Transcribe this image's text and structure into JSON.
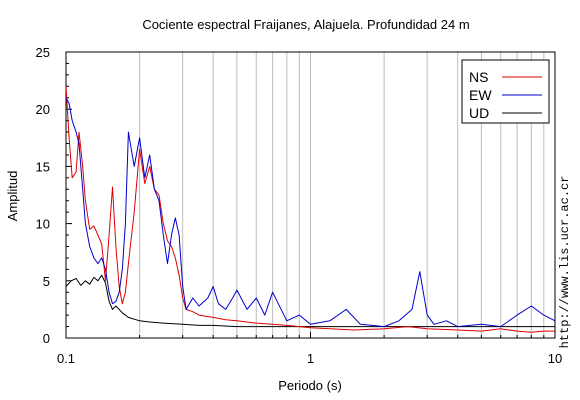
{
  "chart_data": {
    "type": "line",
    "title": "Cociente espectral Fraijanes, Alajuela. Profundidad 24 m",
    "xlabel": "Periodo (s)",
    "ylabel": "Amplitud",
    "xscale": "log",
    "xlim": [
      0.1,
      10
    ],
    "ylim": [
      0,
      25
    ],
    "x_ticks": [
      0.1,
      1,
      10
    ],
    "x_tick_labels": [
      "0.1",
      "1",
      "10"
    ],
    "y_ticks": [
      0,
      5,
      10,
      15,
      20,
      25
    ],
    "y_tick_labels": [
      "0",
      "5",
      "10",
      "15",
      "20",
      "25"
    ],
    "grid": "vertical",
    "legend_position": "top-right",
    "watermark": "http://www.lis.ucr.ac.cr",
    "series": [
      {
        "name": "NS",
        "color": "#e00000",
        "x": [
          0.1,
          0.103,
          0.106,
          0.11,
          0.113,
          0.117,
          0.12,
          0.125,
          0.13,
          0.135,
          0.14,
          0.145,
          0.15,
          0.155,
          0.16,
          0.165,
          0.17,
          0.175,
          0.18,
          0.19,
          0.2,
          0.21,
          0.22,
          0.23,
          0.24,
          0.25,
          0.26,
          0.27,
          0.28,
          0.29,
          0.3,
          0.31,
          0.33,
          0.35,
          0.4,
          0.45,
          0.5,
          0.6,
          0.7,
          0.8,
          0.9,
          1.0,
          1.2,
          1.5,
          2.0,
          2.5,
          3.0,
          4.0,
          5.0,
          6.0,
          7.0,
          8.0,
          9.0,
          10.0
        ],
        "y": [
          22.0,
          17.5,
          14.0,
          14.5,
          18.0,
          15.0,
          12.0,
          9.5,
          9.8,
          9.0,
          8.2,
          5.0,
          9.0,
          13.2,
          8.0,
          4.5,
          3.0,
          4.0,
          6.5,
          11.0,
          16.5,
          13.5,
          15.0,
          13.0,
          12.5,
          10.0,
          8.5,
          8.0,
          7.0,
          5.5,
          3.5,
          2.5,
          2.3,
          2.0,
          1.8,
          1.6,
          1.5,
          1.3,
          1.2,
          1.1,
          1.0,
          0.9,
          0.8,
          0.7,
          0.8,
          1.0,
          0.8,
          0.7,
          0.6,
          0.8,
          0.6,
          0.5,
          0.6,
          0.6
        ]
      },
      {
        "name": "EW",
        "color": "#0000cc",
        "x": [
          0.1,
          0.103,
          0.106,
          0.11,
          0.113,
          0.117,
          0.12,
          0.125,
          0.13,
          0.135,
          0.14,
          0.145,
          0.15,
          0.155,
          0.16,
          0.165,
          0.17,
          0.175,
          0.18,
          0.19,
          0.2,
          0.21,
          0.22,
          0.23,
          0.24,
          0.25,
          0.26,
          0.27,
          0.28,
          0.29,
          0.3,
          0.31,
          0.33,
          0.35,
          0.38,
          0.4,
          0.42,
          0.45,
          0.48,
          0.5,
          0.55,
          0.6,
          0.65,
          0.7,
          0.8,
          0.9,
          1.0,
          1.2,
          1.4,
          1.6,
          2.0,
          2.3,
          2.6,
          2.8,
          3.0,
          3.2,
          3.6,
          4.0,
          5.0,
          6.0,
          7.0,
          8.0,
          9.0,
          10.0
        ],
        "y": [
          21.0,
          20.5,
          19.0,
          18.0,
          17.0,
          13.0,
          10.0,
          8.0,
          7.0,
          6.5,
          7.0,
          6.0,
          4.0,
          3.0,
          3.2,
          4.0,
          6.0,
          10.0,
          18.0,
          15.0,
          17.5,
          14.0,
          16.0,
          13.0,
          12.0,
          9.0,
          6.5,
          9.0,
          10.5,
          9.0,
          4.5,
          2.5,
          3.5,
          2.8,
          3.5,
          4.5,
          3.0,
          2.5,
          3.5,
          4.2,
          2.5,
          3.5,
          2.0,
          4.0,
          1.5,
          2.0,
          1.2,
          1.5,
          2.5,
          1.2,
          1.0,
          1.5,
          2.5,
          5.8,
          2.0,
          1.2,
          1.5,
          1.0,
          1.2,
          1.0,
          2.0,
          2.8,
          2.0,
          1.5
        ]
      },
      {
        "name": "UD",
        "color": "#000000",
        "x": [
          0.1,
          0.105,
          0.11,
          0.115,
          0.12,
          0.125,
          0.13,
          0.135,
          0.14,
          0.145,
          0.15,
          0.155,
          0.16,
          0.17,
          0.18,
          0.2,
          0.22,
          0.25,
          0.3,
          0.35,
          0.4,
          0.5,
          0.6,
          0.8,
          1.0,
          1.5,
          2.0,
          3.0,
          4.0,
          5.0,
          6.0,
          8.0,
          10.0
        ],
        "y": [
          4.5,
          5.0,
          5.2,
          4.6,
          5.0,
          4.7,
          5.3,
          5.0,
          5.5,
          4.8,
          3.2,
          2.5,
          2.8,
          2.2,
          1.8,
          1.5,
          1.4,
          1.3,
          1.2,
          1.1,
          1.1,
          1.0,
          1.0,
          1.0,
          1.0,
          1.0,
          1.0,
          1.0,
          1.0,
          1.0,
          1.0,
          1.0,
          1.0
        ]
      }
    ]
  }
}
